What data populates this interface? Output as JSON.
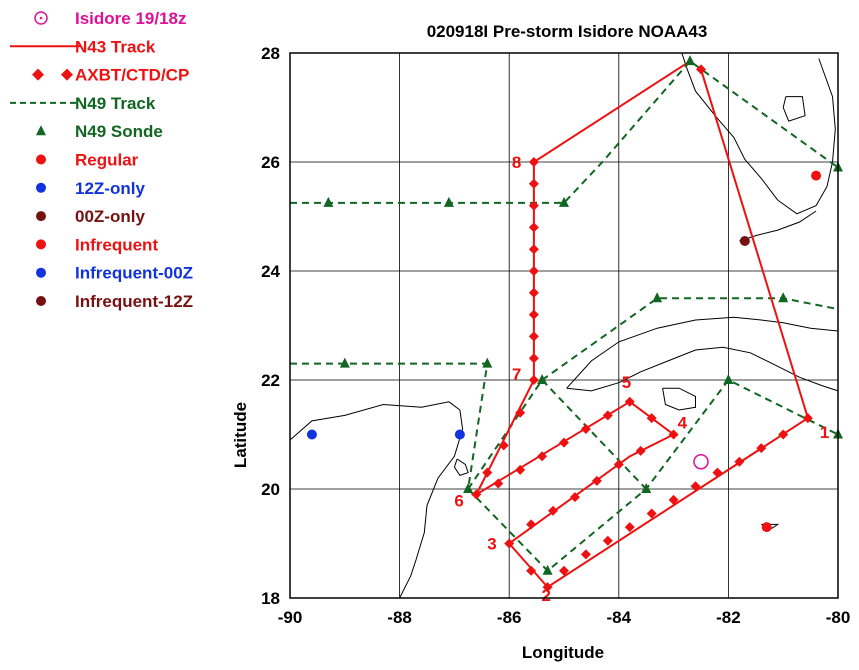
{
  "title": "020918I Pre-storm Isidore NOAA43",
  "xlabel": "Longitude",
  "ylabel": "Latitude",
  "colors": {
    "red": "#ee1111",
    "green": "#116622",
    "blue": "#1133dd",
    "maroon": "#771111",
    "magenta": "#dd1199",
    "coast": "#000000",
    "grid": "#000000"
  },
  "legend": [
    {
      "label": "Isidore 19/18z",
      "symbol": "circle-dot",
      "color": "magenta"
    },
    {
      "label": "N43 Track",
      "symbol": "solid-line",
      "color": "red"
    },
    {
      "label": "AXBT/CTD/CP",
      "symbol": "diamond-line",
      "color": "red"
    },
    {
      "label": "N49 Track",
      "symbol": "dashed-line",
      "color": "green"
    },
    {
      "label": "N49 Sonde",
      "symbol": "triangle",
      "color": "green"
    },
    {
      "label": "Regular",
      "symbol": "dot",
      "color": "red"
    },
    {
      "label": "12Z-only",
      "symbol": "dot",
      "color": "blue"
    },
    {
      "label": "00Z-only",
      "symbol": "dot",
      "color": "maroon"
    },
    {
      "label": "Infrequent",
      "symbol": "dot",
      "color": "red"
    },
    {
      "label": "Infrequent-00Z",
      "symbol": "dot",
      "color": "blue"
    },
    {
      "label": "Infrequent-12Z",
      "symbol": "dot",
      "color": "maroon"
    }
  ],
  "chart_data": {
    "type": "scatter",
    "xlim": [
      -90,
      -80
    ],
    "ylim": [
      18,
      28
    ],
    "xticks": [
      -90,
      -88,
      -86,
      -84,
      -82,
      -80
    ],
    "yticks": [
      18,
      20,
      22,
      24,
      26,
      28
    ],
    "xtick_labels": [
      "-90",
      "-88",
      "-86",
      "-84",
      "-82",
      "-80"
    ],
    "ytick_labels": [
      "18",
      "20",
      "22",
      "24",
      "26",
      "28"
    ],
    "grid": true,
    "legend_position": "left, outside plot",
    "n43_waypoints": [
      {
        "label": "1",
        "lon": -80.55,
        "lat": 21.3
      },
      {
        "label": "2",
        "lon": -85.3,
        "lat": 18.2
      },
      {
        "label": "3",
        "lon": -86.0,
        "lat": 19.0
      },
      {
        "label": "4",
        "lon": -83.0,
        "lat": 21.0
      },
      {
        "label": "5",
        "lon": -83.8,
        "lat": 21.6
      },
      {
        "label": "6",
        "lon": -86.6,
        "lat": 19.9
      },
      {
        "label": "7",
        "lon": -85.55,
        "lat": 22.0
      },
      {
        "label": "8",
        "lon": -85.55,
        "lat": 26.0
      }
    ],
    "n43_track": [
      [
        -82.5,
        27.7
      ],
      [
        -80.55,
        21.3
      ],
      [
        -85.3,
        18.2
      ],
      [
        -86.0,
        19.0
      ],
      [
        -83.8,
        20.6
      ],
      [
        -83.0,
        21.0
      ],
      [
        -83.8,
        21.6
      ],
      [
        -86.6,
        19.9
      ],
      [
        -85.55,
        22.0
      ],
      [
        -85.55,
        26.0
      ],
      [
        -82.7,
        27.85
      ]
    ],
    "n43_drops": [
      [
        -82.5,
        27.7
      ],
      [
        -80.55,
        21.3
      ],
      [
        -81.0,
        21.0
      ],
      [
        -81.4,
        20.75
      ],
      [
        -81.8,
        20.5
      ],
      [
        -82.2,
        20.3
      ],
      [
        -82.6,
        20.05
      ],
      [
        -83.0,
        19.8
      ],
      [
        -83.4,
        19.55
      ],
      [
        -83.8,
        19.3
      ],
      [
        -84.2,
        19.05
      ],
      [
        -84.6,
        18.8
      ],
      [
        -85.0,
        18.5
      ],
      [
        -85.3,
        18.2
      ],
      [
        -85.6,
        18.5
      ],
      [
        -86.0,
        19.0
      ],
      [
        -85.6,
        19.35
      ],
      [
        -85.2,
        19.6
      ],
      [
        -84.8,
        19.85
      ],
      [
        -84.4,
        20.15
      ],
      [
        -84.0,
        20.45
      ],
      [
        -83.6,
        20.7
      ],
      [
        -83.0,
        21.0
      ],
      [
        -83.4,
        21.3
      ],
      [
        -83.8,
        21.6
      ],
      [
        -84.2,
        21.35
      ],
      [
        -84.6,
        21.1
      ],
      [
        -85.0,
        20.85
      ],
      [
        -85.4,
        20.6
      ],
      [
        -85.8,
        20.35
      ],
      [
        -86.2,
        20.1
      ],
      [
        -86.6,
        19.9
      ],
      [
        -86.4,
        20.3
      ],
      [
        -86.1,
        20.8
      ],
      [
        -85.8,
        21.4
      ],
      [
        -85.55,
        22.0
      ],
      [
        -85.55,
        22.4
      ],
      [
        -85.55,
        22.8
      ],
      [
        -85.55,
        23.2
      ],
      [
        -85.55,
        23.6
      ],
      [
        -85.55,
        24.0
      ],
      [
        -85.55,
        24.4
      ],
      [
        -85.55,
        24.8
      ],
      [
        -85.55,
        25.2
      ],
      [
        -85.55,
        25.6
      ],
      [
        -85.55,
        26.0
      ]
    ],
    "n49_track_segments": [
      [
        [
          -90,
          25.25
        ],
        [
          -85.0,
          25.25
        ],
        [
          -84.3,
          26.0
        ],
        [
          -82.7,
          27.85
        ],
        [
          -80.0,
          25.9
        ]
      ],
      [
        [
          -90,
          22.3
        ],
        [
          -86.4,
          22.3
        ],
        [
          -86.75,
          20.0
        ],
        [
          -85.3,
          18.5
        ],
        [
          -83.5,
          20.0
        ],
        [
          -82.0,
          22.0
        ],
        [
          -80.0,
          21.0
        ]
      ],
      [
        [
          -86.75,
          20.0
        ],
        [
          -85.4,
          22.0
        ],
        [
          -83.5,
          20.0
        ]
      ],
      [
        [
          -85.4,
          22.0
        ],
        [
          -83.3,
          23.5
        ],
        [
          -81.0,
          23.5
        ],
        [
          -80.0,
          23.3
        ]
      ]
    ],
    "n49_sondes": [
      [
        -89.3,
        25.25
      ],
      [
        -87.1,
        25.25
      ],
      [
        -85.0,
        25.25
      ],
      [
        -82.7,
        27.85
      ],
      [
        -80.0,
        25.9
      ],
      [
        -89.0,
        22.3
      ],
      [
        -86.4,
        22.3
      ],
      [
        -86.75,
        20.0
      ],
      [
        -85.3,
        18.5
      ],
      [
        -83.5,
        20.0
      ],
      [
        -82.0,
        22.0
      ],
      [
        -80.0,
        21.0
      ],
      [
        -85.4,
        22.0
      ],
      [
        -83.3,
        23.5
      ],
      [
        -81.0,
        23.5
      ]
    ],
    "storm_position": {
      "lon": -82.5,
      "lat": 20.5
    },
    "stations": [
      {
        "lon": -80.4,
        "lat": 25.75,
        "type": "Regular"
      },
      {
        "lon": -81.3,
        "lat": 19.3,
        "type": "Regular"
      },
      {
        "lon": -81.7,
        "lat": 24.55,
        "type": "00Z-only"
      },
      {
        "lon": -89.6,
        "lat": 21.0,
        "type": "12Z-only"
      },
      {
        "lon": -86.9,
        "lat": 21.0,
        "type": "12Z-only"
      }
    ]
  }
}
